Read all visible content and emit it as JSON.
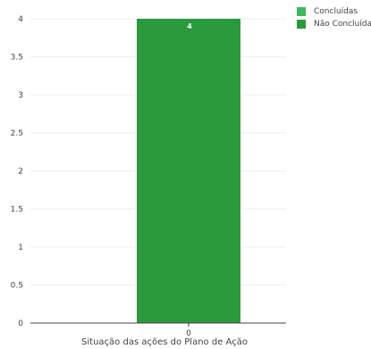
{
  "chart_data": {
    "type": "bar",
    "categories": [
      "0"
    ],
    "series": [
      {
        "name": "Concluídas",
        "values": [
          0
        ],
        "color": "#3dbb5c"
      },
      {
        "name": "Não Concluídas",
        "values": [
          4
        ],
        "color": "#2a9a3c"
      }
    ],
    "data_labels": [
      "4"
    ],
    "xlabel": "Situação das ações do Plano de Ação",
    "ylabel": "",
    "ylim": [
      0,
      4
    ],
    "yticks": [
      "0",
      "0.5",
      "1",
      "1.5",
      "2",
      "2.5",
      "3",
      "3.5",
      "4"
    ],
    "grid": true,
    "legend_position": "top-right"
  }
}
